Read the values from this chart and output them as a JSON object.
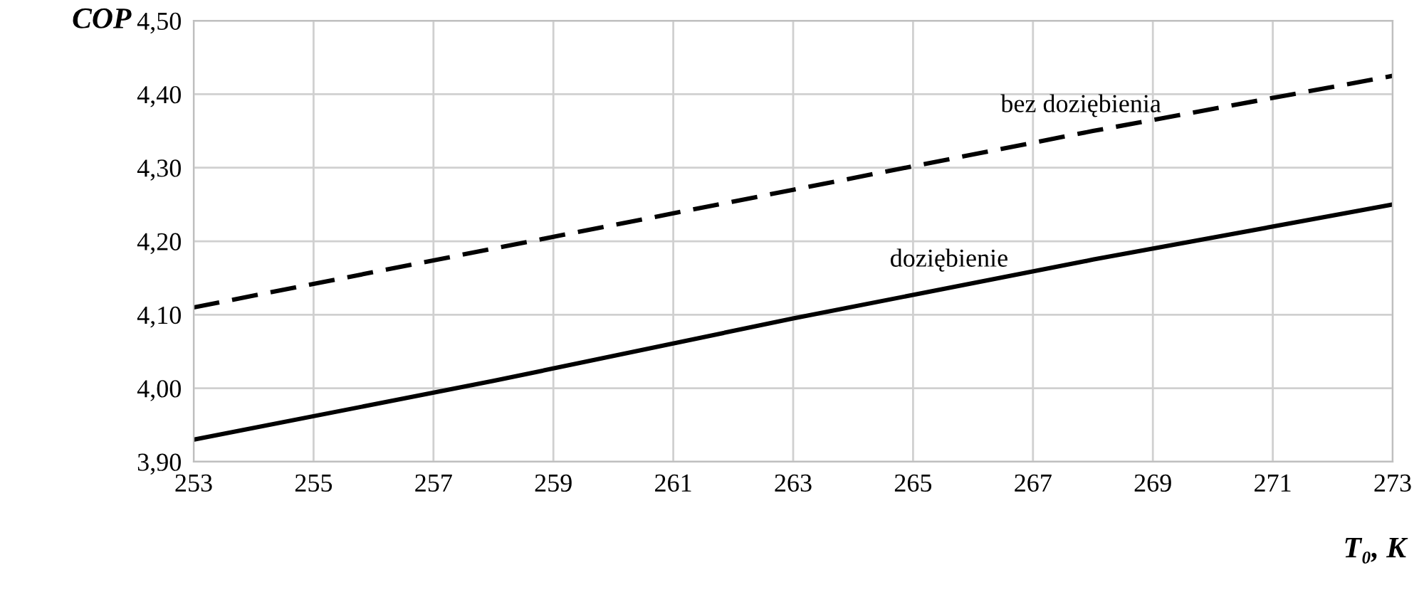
{
  "chart_data": {
    "type": "line",
    "x": [
      253,
      258,
      263,
      268,
      273
    ],
    "series": [
      {
        "name": "bez doziębienia",
        "color": "#000000",
        "line_style": "dashed",
        "values": [
          4.11,
          4.19,
          4.27,
          4.35,
          4.425
        ]
      },
      {
        "name": "doziębienie",
        "color": "#000000",
        "line_style": "solid",
        "values": [
          3.93,
          4.01,
          4.095,
          4.175,
          4.25
        ]
      }
    ],
    "xlabel": "T₀, K",
    "ylabel": "COP",
    "xlim": [
      253,
      273
    ],
    "xticks": [
      253,
      255,
      257,
      259,
      261,
      263,
      265,
      267,
      269,
      271,
      273
    ],
    "ylim": [
      3.9,
      4.5
    ],
    "yticks": [
      {
        "value": 3.9,
        "label": "3,90"
      },
      {
        "value": 4.0,
        "label": "4,00"
      },
      {
        "value": 4.1,
        "label": "4,10"
      },
      {
        "value": 4.2,
        "label": "4,20"
      },
      {
        "value": 4.3,
        "label": "4,30"
      },
      {
        "value": 4.4,
        "label": "4,40"
      },
      {
        "value": 4.5,
        "label": "4,50"
      }
    ],
    "grid": true,
    "legend": false,
    "marker": "none"
  }
}
